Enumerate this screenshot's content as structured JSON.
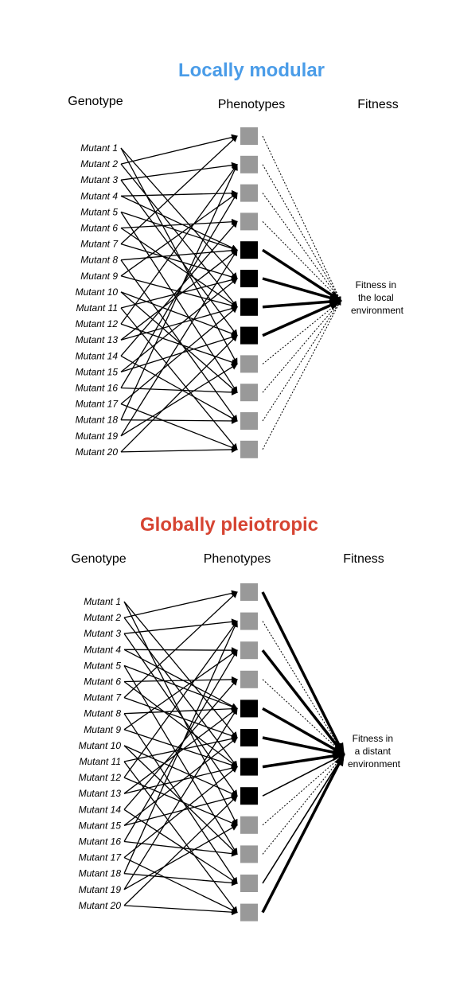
{
  "colors": {
    "locally_modular": "#4a9ce8",
    "globally_pleiotropic": "#d64432",
    "phenotype_gray": "#999999",
    "phenotype_black": "#000000"
  },
  "panels": [
    {
      "id": "local",
      "title": "Locally modular",
      "title_color_key": "locally_modular",
      "headers": {
        "genotype": "Genotype",
        "phenotypes": "Phenotypes",
        "fitness": "Fitness"
      },
      "target_lines": [
        "Fitness in",
        "the local",
        "environment"
      ],
      "mutants": [
        "Mutant 1",
        "Mutant 2",
        "Mutant 3",
        "Mutant 4",
        "Mutant 5",
        "Mutant 6",
        "Mutant 7",
        "Mutant 8",
        "Mutant 9",
        "Mutant 10",
        "Mutant 11",
        "Mutant 12",
        "Mutant 13",
        "Mutant 14",
        "Mutant 15",
        "Mutant 16",
        "Mutant 17",
        "Mutant 18",
        "Mutant 19",
        "Mutant 20"
      ],
      "phenotypes": [
        "gray",
        "gray",
        "gray",
        "gray",
        "black",
        "black",
        "black",
        "black",
        "gray",
        "gray",
        "gray",
        "gray"
      ],
      "phenotype_to_fitness": [
        "dotted",
        "dotted",
        "dotted",
        "dotted",
        "thick",
        "thick",
        "thick",
        "thick",
        "dotted",
        "dotted",
        "dotted",
        "dotted"
      ],
      "mutant_to_phenotype": [
        [
          0,
          5
        ],
        [
          0,
          8
        ],
        [
          1,
          0
        ],
        [
          1,
          6
        ],
        [
          2,
          1
        ],
        [
          2,
          7
        ],
        [
          3,
          2
        ],
        [
          3,
          4
        ],
        [
          4,
          4
        ],
        [
          4,
          9
        ],
        [
          5,
          3
        ],
        [
          5,
          6
        ],
        [
          6,
          0
        ],
        [
          6,
          5
        ],
        [
          7,
          4
        ],
        [
          7,
          10
        ],
        [
          8,
          2
        ],
        [
          8,
          6
        ],
        [
          9,
          7
        ],
        [
          9,
          9
        ],
        [
          10,
          5
        ],
        [
          10,
          11
        ],
        [
          11,
          1
        ],
        [
          11,
          8
        ],
        [
          12,
          4
        ],
        [
          12,
          6
        ],
        [
          13,
          3
        ],
        [
          13,
          10
        ],
        [
          14,
          5
        ],
        [
          14,
          7
        ],
        [
          15,
          2
        ],
        [
          15,
          9
        ],
        [
          16,
          6
        ],
        [
          16,
          11
        ],
        [
          17,
          1
        ],
        [
          17,
          10
        ],
        [
          18,
          4
        ],
        [
          18,
          8
        ],
        [
          19,
          7
        ],
        [
          19,
          11
        ]
      ]
    },
    {
      "id": "distant",
      "title": "Globally pleiotropic",
      "title_color_key": "globally_pleiotropic",
      "headers": {
        "genotype": "Genotype",
        "phenotypes": "Phenotypes",
        "fitness": "Fitness"
      },
      "target_lines": [
        "Fitness in",
        "a distant",
        "environment"
      ],
      "mutants": [
        "Mutant 1",
        "Mutant 2",
        "Mutant 3",
        "Mutant 4",
        "Mutant 5",
        "Mutant 6",
        "Mutant 7",
        "Mutant 8",
        "Mutant 9",
        "Mutant 10",
        "Mutant 11",
        "Mutant 12",
        "Mutant 13",
        "Mutant 14",
        "Mutant 15",
        "Mutant 16",
        "Mutant 17",
        "Mutant 18",
        "Mutant 19",
        "Mutant 20"
      ],
      "phenotypes": [
        "gray",
        "gray",
        "gray",
        "gray",
        "black",
        "black",
        "black",
        "black",
        "gray",
        "gray",
        "gray",
        "gray"
      ],
      "phenotype_to_fitness": [
        "thick",
        "dotted",
        "thick",
        "dotted",
        "thick",
        "thick",
        "thick",
        "thin",
        "dotted",
        "dotted",
        "thin",
        "thick"
      ],
      "mutant_to_phenotype": [
        [
          0,
          5
        ],
        [
          0,
          8
        ],
        [
          1,
          0
        ],
        [
          1,
          6
        ],
        [
          2,
          1
        ],
        [
          2,
          7
        ],
        [
          3,
          2
        ],
        [
          3,
          4
        ],
        [
          4,
          4
        ],
        [
          4,
          9
        ],
        [
          5,
          3
        ],
        [
          5,
          6
        ],
        [
          6,
          0
        ],
        [
          6,
          5
        ],
        [
          7,
          4
        ],
        [
          7,
          10
        ],
        [
          8,
          2
        ],
        [
          8,
          6
        ],
        [
          9,
          7
        ],
        [
          9,
          9
        ],
        [
          10,
          5
        ],
        [
          10,
          11
        ],
        [
          11,
          1
        ],
        [
          11,
          8
        ],
        [
          12,
          4
        ],
        [
          12,
          6
        ],
        [
          13,
          3
        ],
        [
          13,
          10
        ],
        [
          14,
          5
        ],
        [
          14,
          7
        ],
        [
          15,
          2
        ],
        [
          15,
          9
        ],
        [
          16,
          6
        ],
        [
          16,
          11
        ],
        [
          17,
          1
        ],
        [
          17,
          10
        ],
        [
          18,
          4
        ],
        [
          18,
          8
        ],
        [
          19,
          7
        ],
        [
          19,
          11
        ]
      ]
    }
  ]
}
